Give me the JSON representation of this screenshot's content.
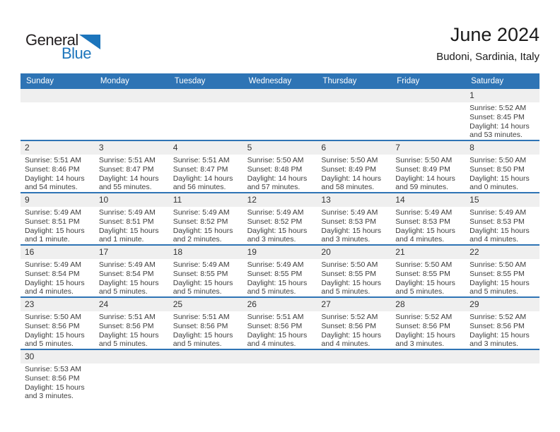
{
  "logo": {
    "part1": "General",
    "part2": "Blue",
    "triangle_icon": "blue-right-triangle"
  },
  "header": {
    "title": "June 2024",
    "subtitle": "Budoni, Sardinia, Italy"
  },
  "colors": {
    "header_bar_blue": "#2e74b5",
    "week_divider_blue": "#2e74b5",
    "date_band_gray": "#efefef",
    "logo_blue": "#1c75bc",
    "logo_black": "#231f20",
    "detail_text": "#3d3d3d"
  },
  "calendar": {
    "day_headers": [
      "Sunday",
      "Monday",
      "Tuesday",
      "Wednesday",
      "Thursday",
      "Friday",
      "Saturday"
    ],
    "weeks": [
      [
        null,
        null,
        null,
        null,
        null,
        null,
        {
          "date": "1",
          "sunrise": "Sunrise: 5:52 AM",
          "sunset": "Sunset: 8:45 PM",
          "daylight1": "Daylight: 14 hours",
          "daylight2": "and 53 minutes."
        }
      ],
      [
        {
          "date": "2",
          "sunrise": "Sunrise: 5:51 AM",
          "sunset": "Sunset: 8:46 PM",
          "daylight1": "Daylight: 14 hours",
          "daylight2": "and 54 minutes."
        },
        {
          "date": "3",
          "sunrise": "Sunrise: 5:51 AM",
          "sunset": "Sunset: 8:47 PM",
          "daylight1": "Daylight: 14 hours",
          "daylight2": "and 55 minutes."
        },
        {
          "date": "4",
          "sunrise": "Sunrise: 5:51 AM",
          "sunset": "Sunset: 8:47 PM",
          "daylight1": "Daylight: 14 hours",
          "daylight2": "and 56 minutes."
        },
        {
          "date": "5",
          "sunrise": "Sunrise: 5:50 AM",
          "sunset": "Sunset: 8:48 PM",
          "daylight1": "Daylight: 14 hours",
          "daylight2": "and 57 minutes."
        },
        {
          "date": "6",
          "sunrise": "Sunrise: 5:50 AM",
          "sunset": "Sunset: 8:49 PM",
          "daylight1": "Daylight: 14 hours",
          "daylight2": "and 58 minutes."
        },
        {
          "date": "7",
          "sunrise": "Sunrise: 5:50 AM",
          "sunset": "Sunset: 8:49 PM",
          "daylight1": "Daylight: 14 hours",
          "daylight2": "and 59 minutes."
        },
        {
          "date": "8",
          "sunrise": "Sunrise: 5:50 AM",
          "sunset": "Sunset: 8:50 PM",
          "daylight1": "Daylight: 15 hours",
          "daylight2": "and 0 minutes."
        }
      ],
      [
        {
          "date": "9",
          "sunrise": "Sunrise: 5:49 AM",
          "sunset": "Sunset: 8:51 PM",
          "daylight1": "Daylight: 15 hours",
          "daylight2": "and 1 minute."
        },
        {
          "date": "10",
          "sunrise": "Sunrise: 5:49 AM",
          "sunset": "Sunset: 8:51 PM",
          "daylight1": "Daylight: 15 hours",
          "daylight2": "and 1 minute."
        },
        {
          "date": "11",
          "sunrise": "Sunrise: 5:49 AM",
          "sunset": "Sunset: 8:52 PM",
          "daylight1": "Daylight: 15 hours",
          "daylight2": "and 2 minutes."
        },
        {
          "date": "12",
          "sunrise": "Sunrise: 5:49 AM",
          "sunset": "Sunset: 8:52 PM",
          "daylight1": "Daylight: 15 hours",
          "daylight2": "and 3 minutes."
        },
        {
          "date": "13",
          "sunrise": "Sunrise: 5:49 AM",
          "sunset": "Sunset: 8:53 PM",
          "daylight1": "Daylight: 15 hours",
          "daylight2": "and 3 minutes."
        },
        {
          "date": "14",
          "sunrise": "Sunrise: 5:49 AM",
          "sunset": "Sunset: 8:53 PM",
          "daylight1": "Daylight: 15 hours",
          "daylight2": "and 4 minutes."
        },
        {
          "date": "15",
          "sunrise": "Sunrise: 5:49 AM",
          "sunset": "Sunset: 8:53 PM",
          "daylight1": "Daylight: 15 hours",
          "daylight2": "and 4 minutes."
        }
      ],
      [
        {
          "date": "16",
          "sunrise": "Sunrise: 5:49 AM",
          "sunset": "Sunset: 8:54 PM",
          "daylight1": "Daylight: 15 hours",
          "daylight2": "and 4 minutes."
        },
        {
          "date": "17",
          "sunrise": "Sunrise: 5:49 AM",
          "sunset": "Sunset: 8:54 PM",
          "daylight1": "Daylight: 15 hours",
          "daylight2": "and 5 minutes."
        },
        {
          "date": "18",
          "sunrise": "Sunrise: 5:49 AM",
          "sunset": "Sunset: 8:55 PM",
          "daylight1": "Daylight: 15 hours",
          "daylight2": "and 5 minutes."
        },
        {
          "date": "19",
          "sunrise": "Sunrise: 5:49 AM",
          "sunset": "Sunset: 8:55 PM",
          "daylight1": "Daylight: 15 hours",
          "daylight2": "and 5 minutes."
        },
        {
          "date": "20",
          "sunrise": "Sunrise: 5:50 AM",
          "sunset": "Sunset: 8:55 PM",
          "daylight1": "Daylight: 15 hours",
          "daylight2": "and 5 minutes."
        },
        {
          "date": "21",
          "sunrise": "Sunrise: 5:50 AM",
          "sunset": "Sunset: 8:55 PM",
          "daylight1": "Daylight: 15 hours",
          "daylight2": "and 5 minutes."
        },
        {
          "date": "22",
          "sunrise": "Sunrise: 5:50 AM",
          "sunset": "Sunset: 8:55 PM",
          "daylight1": "Daylight: 15 hours",
          "daylight2": "and 5 minutes."
        }
      ],
      [
        {
          "date": "23",
          "sunrise": "Sunrise: 5:50 AM",
          "sunset": "Sunset: 8:56 PM",
          "daylight1": "Daylight: 15 hours",
          "daylight2": "and 5 minutes."
        },
        {
          "date": "24",
          "sunrise": "Sunrise: 5:51 AM",
          "sunset": "Sunset: 8:56 PM",
          "daylight1": "Daylight: 15 hours",
          "daylight2": "and 5 minutes."
        },
        {
          "date": "25",
          "sunrise": "Sunrise: 5:51 AM",
          "sunset": "Sunset: 8:56 PM",
          "daylight1": "Daylight: 15 hours",
          "daylight2": "and 5 minutes."
        },
        {
          "date": "26",
          "sunrise": "Sunrise: 5:51 AM",
          "sunset": "Sunset: 8:56 PM",
          "daylight1": "Daylight: 15 hours",
          "daylight2": "and 4 minutes."
        },
        {
          "date": "27",
          "sunrise": "Sunrise: 5:52 AM",
          "sunset": "Sunset: 8:56 PM",
          "daylight1": "Daylight: 15 hours",
          "daylight2": "and 4 minutes."
        },
        {
          "date": "28",
          "sunrise": "Sunrise: 5:52 AM",
          "sunset": "Sunset: 8:56 PM",
          "daylight1": "Daylight: 15 hours",
          "daylight2": "and 3 minutes."
        },
        {
          "date": "29",
          "sunrise": "Sunrise: 5:52 AM",
          "sunset": "Sunset: 8:56 PM",
          "daylight1": "Daylight: 15 hours",
          "daylight2": "and 3 minutes."
        }
      ],
      [
        {
          "date": "30",
          "sunrise": "Sunrise: 5:53 AM",
          "sunset": "Sunset: 8:56 PM",
          "daylight1": "Daylight: 15 hours",
          "daylight2": "and 3 minutes."
        },
        null,
        null,
        null,
        null,
        null,
        null
      ]
    ]
  }
}
